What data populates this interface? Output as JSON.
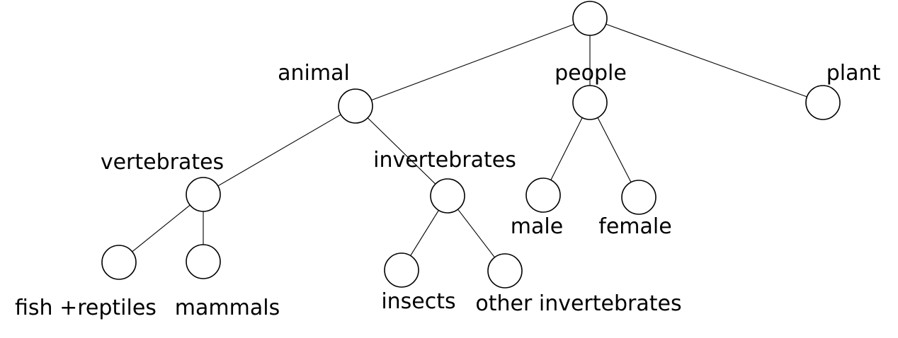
{
  "diagram": {
    "type": "tree",
    "nodes": [
      {
        "id": "root",
        "label": ""
      },
      {
        "id": "animal",
        "label": "animal"
      },
      {
        "id": "people",
        "label": "people"
      },
      {
        "id": "plant",
        "label": "plant"
      },
      {
        "id": "vertebrates",
        "label": "vertebrates"
      },
      {
        "id": "invertebrates",
        "label": "invertebrates"
      },
      {
        "id": "male",
        "label": "male"
      },
      {
        "id": "female",
        "label": "female"
      },
      {
        "id": "fish",
        "label": "fish +reptiles"
      },
      {
        "id": "mammals",
        "label": "mammals"
      },
      {
        "id": "insects",
        "label": "insects"
      },
      {
        "id": "other",
        "label": "other invertebrates"
      }
    ],
    "edges": [
      [
        "root",
        "animal"
      ],
      [
        "root",
        "people"
      ],
      [
        "root",
        "plant"
      ],
      [
        "animal",
        "vertebrates"
      ],
      [
        "animal",
        "invertebrates"
      ],
      [
        "people",
        "male"
      ],
      [
        "people",
        "female"
      ],
      [
        "vertebrates",
        "fish"
      ],
      [
        "vertebrates",
        "mammals"
      ],
      [
        "invertebrates",
        "insects"
      ],
      [
        "invertebrates",
        "other"
      ]
    ]
  }
}
